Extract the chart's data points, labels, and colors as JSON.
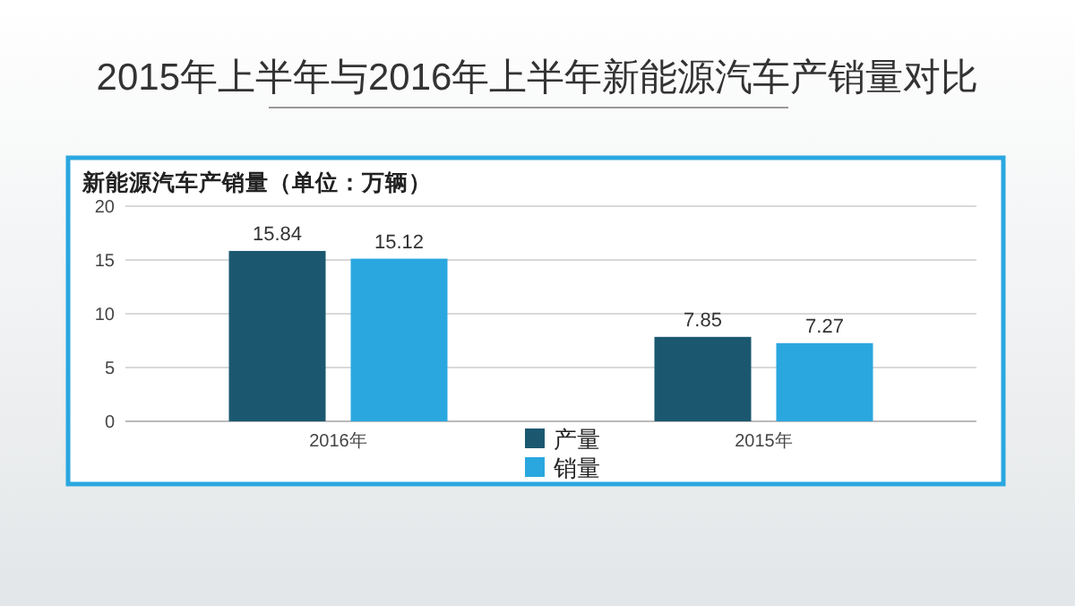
{
  "chart_data": {
    "type": "bar",
    "title": "2015年上半年与2016年上半年新能源汽车产销量对比",
    "subtitle": "新能源汽车产销量（单位：万辆）",
    "categories": [
      "2016年",
      "2015年"
    ],
    "series": [
      {
        "name": "产量",
        "color": "#1b5870",
        "values": [
          15.84,
          7.85
        ]
      },
      {
        "name": "销量",
        "color": "#2aa7df",
        "values": [
          15.12,
          7.27
        ]
      }
    ],
    "ylim": [
      0,
      20
    ],
    "yticks": [
      0,
      5,
      10,
      15,
      20
    ],
    "grid": "y",
    "legend": "bottom",
    "data_labels": true
  }
}
